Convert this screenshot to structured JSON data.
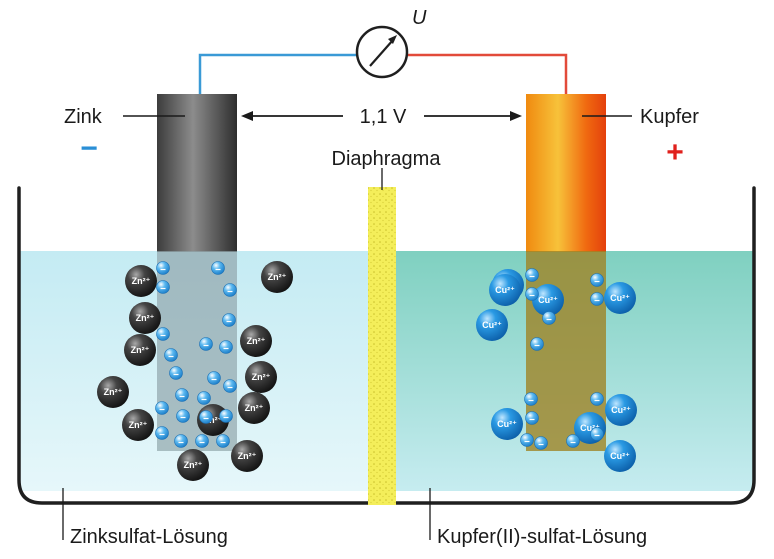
{
  "diagram": {
    "voltmeter_symbol": "U",
    "voltage_label": "1,1 V",
    "anode_label": "Zink",
    "cathode_label": "Kupfer",
    "anode_sign": "−",
    "cathode_sign": "+",
    "separator_label": "Diaphragma",
    "left_solution_label": "Zinksulfat-Lösung",
    "right_solution_label": "Kupfer(II)-sulfat-Lösung",
    "zinc_ion_label": "Zn²⁺",
    "copper_ion_label": "Cu²⁺",
    "zinc_ion_count": 12,
    "copper_ion_count": 9,
    "colors": {
      "anode_sign": "#2a8fd6",
      "cathode_sign": "#e0201c",
      "wire_left": "#3a9ad6",
      "wire_right": "#e24a3a",
      "zinc_solution": "#c9edf4",
      "copper_solution": "#8ed7c8",
      "diaphragm": "#f4ee5a",
      "zinc_electrode": "#6a6a6a",
      "copper_electrode": "#f06a10",
      "electron": "#2f9ee0",
      "zinc_ion": "#2b2b2b",
      "copper_ion": "#1f8fd8"
    }
  }
}
